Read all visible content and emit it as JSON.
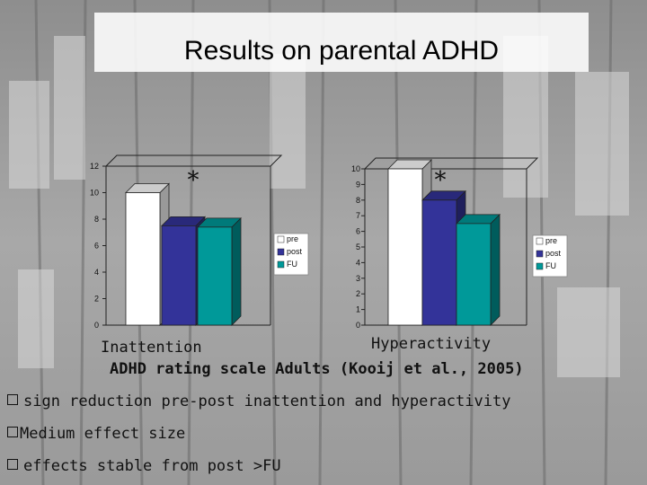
{
  "slide": {
    "title": "Results on parental ADHD",
    "caption": "ADHD rating scale Adults (Kooij et al., 2005)",
    "bullets": [
      "sign reduction pre-post inattention and hyperactivity",
      "Medium effect size",
      "effects stable from post >FU"
    ]
  },
  "colors": {
    "pre": "#ffffff",
    "post": "#333399",
    "FU": "#009999"
  },
  "chart_data": [
    {
      "type": "bar",
      "label": "Inattention",
      "annotation": "*",
      "series": [
        {
          "name": "pre",
          "values": [
            10
          ]
        },
        {
          "name": "post",
          "values": [
            7.5
          ]
        },
        {
          "name": "FU",
          "values": [
            7.4
          ]
        }
      ],
      "ylim": [
        0,
        12
      ],
      "yticks": [
        0,
        2,
        4,
        6,
        8,
        10,
        12
      ],
      "legend": [
        "pre",
        "post",
        "FU"
      ]
    },
    {
      "type": "bar",
      "label": "Hyperactivity",
      "annotation": "*",
      "series": [
        {
          "name": "pre",
          "values": [
            10
          ]
        },
        {
          "name": "post",
          "values": [
            8
          ]
        },
        {
          "name": "FU",
          "values": [
            6.5
          ]
        }
      ],
      "ylim": [
        0,
        10
      ],
      "yticks": [
        0,
        1,
        2,
        3,
        4,
        5,
        6,
        7,
        8,
        9,
        10
      ],
      "legend": [
        "pre",
        "post",
        "FU"
      ]
    }
  ]
}
